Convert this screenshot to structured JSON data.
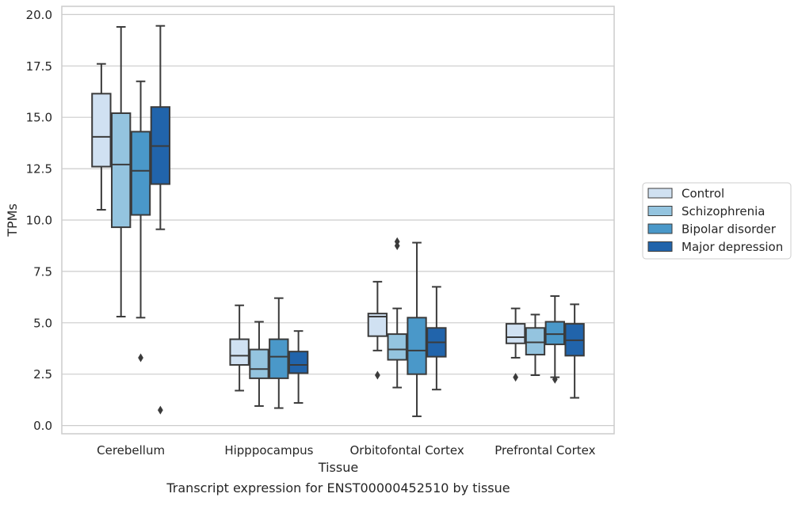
{
  "chart_data": {
    "type": "box",
    "title": "",
    "caption": "Transcript expression for ENST00000452510 by tissue",
    "xlabel": "Tissue",
    "ylabel": "TPMs",
    "ylim": [
      -0.4,
      20.4
    ],
    "yticks": [
      0.0,
      2.5,
      5.0,
      7.5,
      10.0,
      12.5,
      15.0,
      17.5,
      20.0
    ],
    "ytick_labels": [
      "0.0",
      "2.5",
      "5.0",
      "7.5",
      "10.0",
      "12.5",
      "15.0",
      "17.5",
      "20.0"
    ],
    "grid": "horizontal",
    "legend_position": "outside-right",
    "categories": [
      "Cerebellum",
      "Hipppocampus",
      "Orbitofontal Cortex",
      "Prefrontal Cortex"
    ],
    "series": [
      {
        "name": "Control",
        "color": "#d0e1f2",
        "boxes": [
          {
            "whisker_low": 10.5,
            "q1": 12.6,
            "median": 14.05,
            "q3": 16.15,
            "whisker_high": 17.6,
            "outliers": []
          },
          {
            "whisker_low": 1.7,
            "q1": 2.95,
            "median": 3.4,
            "q3": 4.2,
            "whisker_high": 5.85,
            "outliers": []
          },
          {
            "whisker_low": 3.65,
            "q1": 4.35,
            "median": 5.3,
            "q3": 5.45,
            "whisker_high": 7.0,
            "outliers": [
              2.45
            ]
          },
          {
            "whisker_low": 3.3,
            "q1": 4.0,
            "median": 4.3,
            "q3": 4.95,
            "whisker_high": 5.7,
            "outliers": [
              2.35
            ]
          }
        ]
      },
      {
        "name": "Schizophrenia",
        "color": "#94c4df",
        "boxes": [
          {
            "whisker_low": 5.3,
            "q1": 9.65,
            "median": 12.7,
            "q3": 15.2,
            "whisker_high": 19.4,
            "outliers": []
          },
          {
            "whisker_low": 0.95,
            "q1": 2.3,
            "median": 2.75,
            "q3": 3.7,
            "whisker_high": 5.05,
            "outliers": []
          },
          {
            "whisker_low": 1.85,
            "q1": 3.2,
            "median": 3.7,
            "q3": 4.45,
            "whisker_high": 5.7,
            "outliers": [
              8.75,
              8.95
            ]
          },
          {
            "whisker_low": 2.45,
            "q1": 3.45,
            "median": 4.05,
            "q3": 4.75,
            "whisker_high": 5.4,
            "outliers": []
          }
        ]
      },
      {
        "name": "Bipolar disorder",
        "color": "#4a98c9",
        "boxes": [
          {
            "whisker_low": 5.25,
            "q1": 10.25,
            "median": 12.4,
            "q3": 14.3,
            "whisker_high": 16.75,
            "outliers": [
              3.3
            ]
          },
          {
            "whisker_low": 0.85,
            "q1": 2.3,
            "median": 3.35,
            "q3": 4.2,
            "whisker_high": 6.2,
            "outliers": []
          },
          {
            "whisker_low": 0.45,
            "q1": 2.5,
            "median": 3.65,
            "q3": 5.25,
            "whisker_high": 8.9,
            "outliers": []
          },
          {
            "whisker_low": 2.35,
            "q1": 3.95,
            "median": 4.45,
            "q3": 5.05,
            "whisker_high": 6.3,
            "outliers": [
              2.25
            ]
          }
        ]
      },
      {
        "name": "Major depression",
        "color": "#2164ab",
        "boxes": [
          {
            "whisker_low": 9.55,
            "q1": 11.75,
            "median": 13.6,
            "q3": 15.5,
            "whisker_high": 19.45,
            "outliers": [
              0.75
            ]
          },
          {
            "whisker_low": 1.1,
            "q1": 2.55,
            "median": 2.95,
            "q3": 3.6,
            "whisker_high": 4.6,
            "outliers": []
          },
          {
            "whisker_low": 1.75,
            "q1": 3.35,
            "median": 4.05,
            "q3": 4.75,
            "whisker_high": 6.75,
            "outliers": []
          },
          {
            "whisker_low": 1.35,
            "q1": 3.4,
            "median": 4.15,
            "q3": 4.95,
            "whisker_high": 5.9,
            "outliers": []
          }
        ]
      }
    ]
  }
}
